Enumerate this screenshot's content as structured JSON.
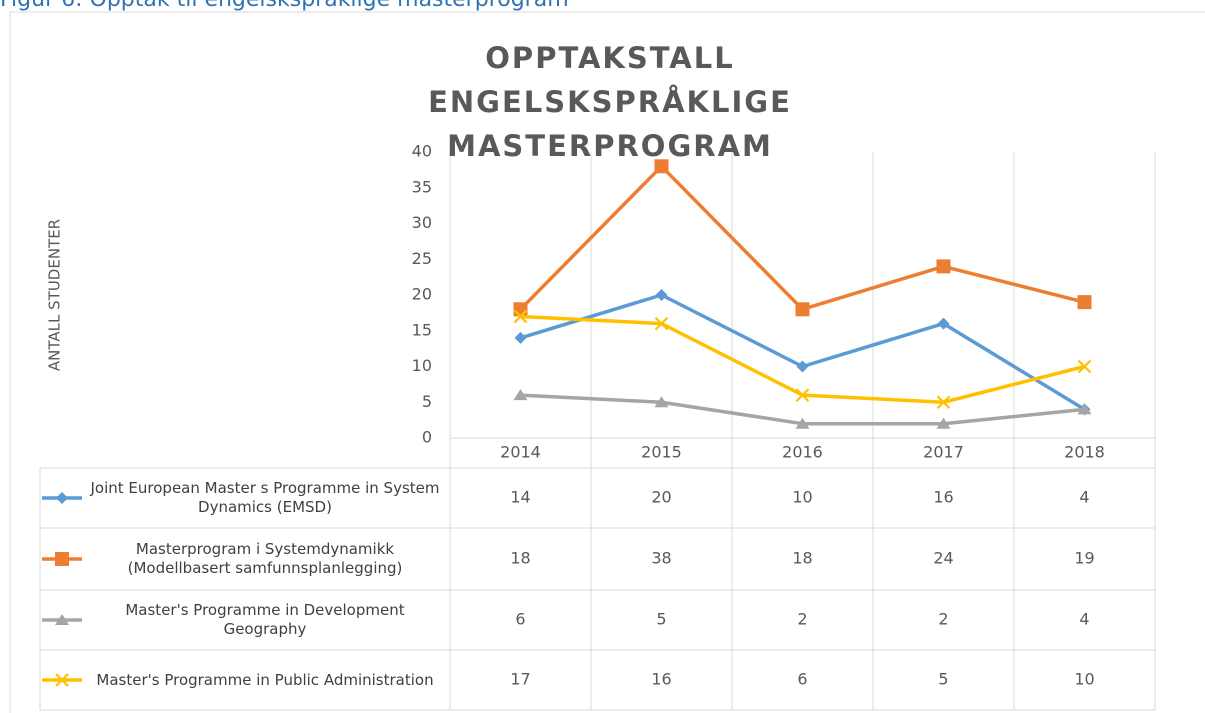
{
  "caption": "Figur 6: Opptak til engelskspråklige masterprogram",
  "chart_data": {
    "type": "line",
    "title": "OPPTAKSTALL ENGELSKSPRÅKLIGE MASTERPROGRAM",
    "y_label": "ANTALL STUDENTER",
    "categories": [
      "2014",
      "2015",
      "2016",
      "2017",
      "2018"
    ],
    "ylim": [
      0,
      40
    ],
    "yticks": [
      0,
      5,
      10,
      15,
      20,
      25,
      30,
      35,
      40
    ],
    "grid": "x",
    "data_table": true,
    "series": [
      {
        "name": "Joint European Master s Programme in System Dynamics (EMSD)",
        "color": "#5b9bd5",
        "marker": "diamond",
        "values": [
          14,
          20,
          10,
          16,
          4
        ]
      },
      {
        "name": "Masterprogram i Systemdynamikk (Modellbasert samfunnsplanlegging)",
        "color": "#ed7d31",
        "marker": "square",
        "values": [
          18,
          38,
          18,
          24,
          19
        ]
      },
      {
        "name": "Master's Programme in Development Geography",
        "color": "#a5a5a5",
        "marker": "triangle",
        "values": [
          6,
          5,
          2,
          2,
          4
        ]
      },
      {
        "name": "Master's Programme in Public Administration",
        "color": "#ffc000",
        "marker": "x",
        "values": [
          17,
          16,
          6,
          5,
          10
        ]
      }
    ]
  }
}
